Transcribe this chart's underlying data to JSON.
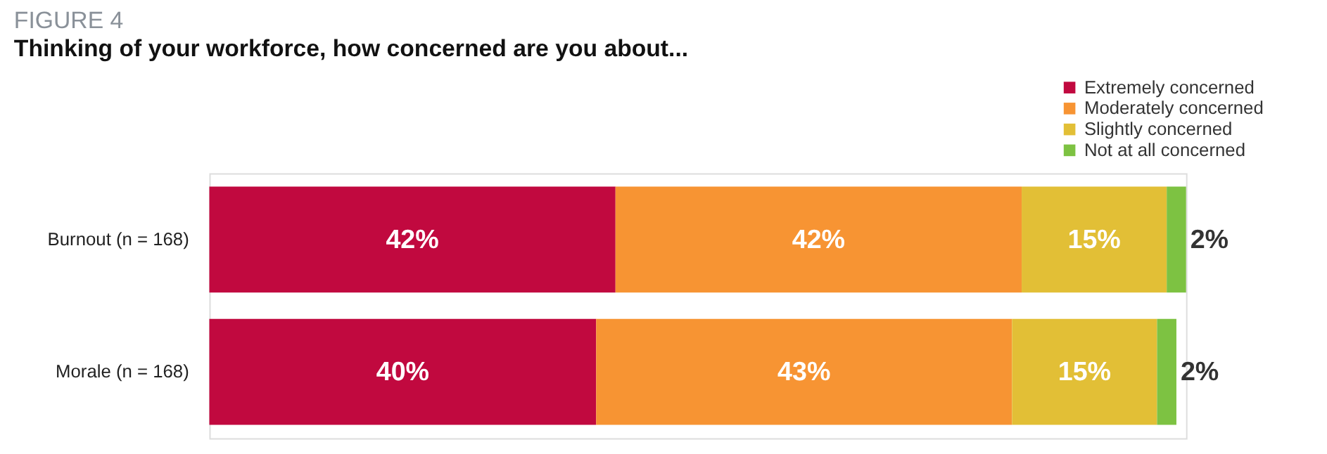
{
  "chart_data": {
    "type": "bar",
    "orientation": "horizontal",
    "stacked": true,
    "tick_labels": "y",
    "title": "FIGURE 4",
    "subtitle": "Thinking of your workforce, how concerned are you about...",
    "categories": [
      "Burnout (n = 168)",
      "Morale (n = 168)"
    ],
    "legend": "top right",
    "series": [
      {
        "name": "Extremely concerned",
        "color": "#c1093f",
        "values": [
          42,
          40
        ],
        "value_labels": [
          "42%",
          "40%"
        ]
      },
      {
        "name": "Moderately concerned",
        "color": "#f79433",
        "values": [
          42,
          43
        ],
        "value_labels": [
          "42%",
          "43%"
        ]
      },
      {
        "name": "Slightly concerned",
        "color": "#e2bf36",
        "values": [
          15,
          15
        ],
        "value_labels": [
          "15%",
          "15%"
        ]
      },
      {
        "name": "Not at all concerned",
        "color": "#7dc242",
        "values": [
          2,
          2
        ],
        "value_labels": [
          "2%",
          "2%"
        ]
      }
    ]
  }
}
